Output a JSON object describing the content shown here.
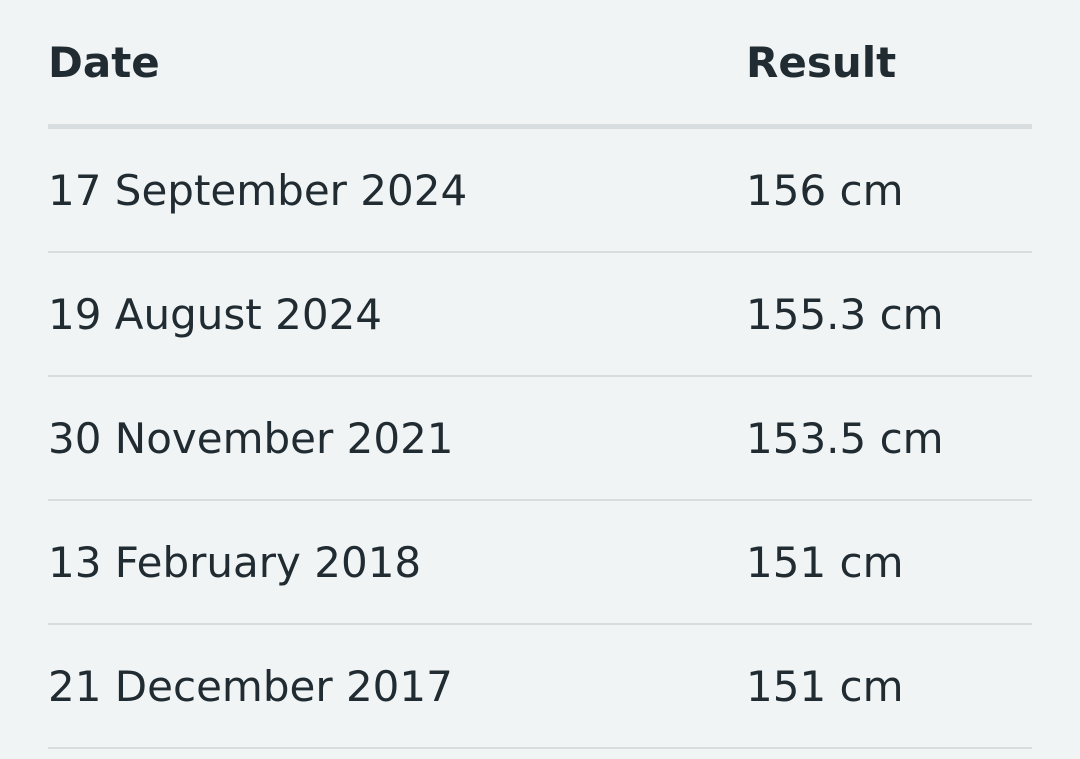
{
  "table": {
    "headers": [
      "Date",
      "Result"
    ],
    "rows": [
      [
        "17 September 2024",
        "156 cm"
      ],
      [
        "19 August 2024",
        "155.3 cm"
      ],
      [
        "30 November 2021",
        "153.5 cm"
      ],
      [
        "13 February 2018",
        "151 cm"
      ],
      [
        "21 December 2017",
        "151 cm"
      ]
    ]
  }
}
